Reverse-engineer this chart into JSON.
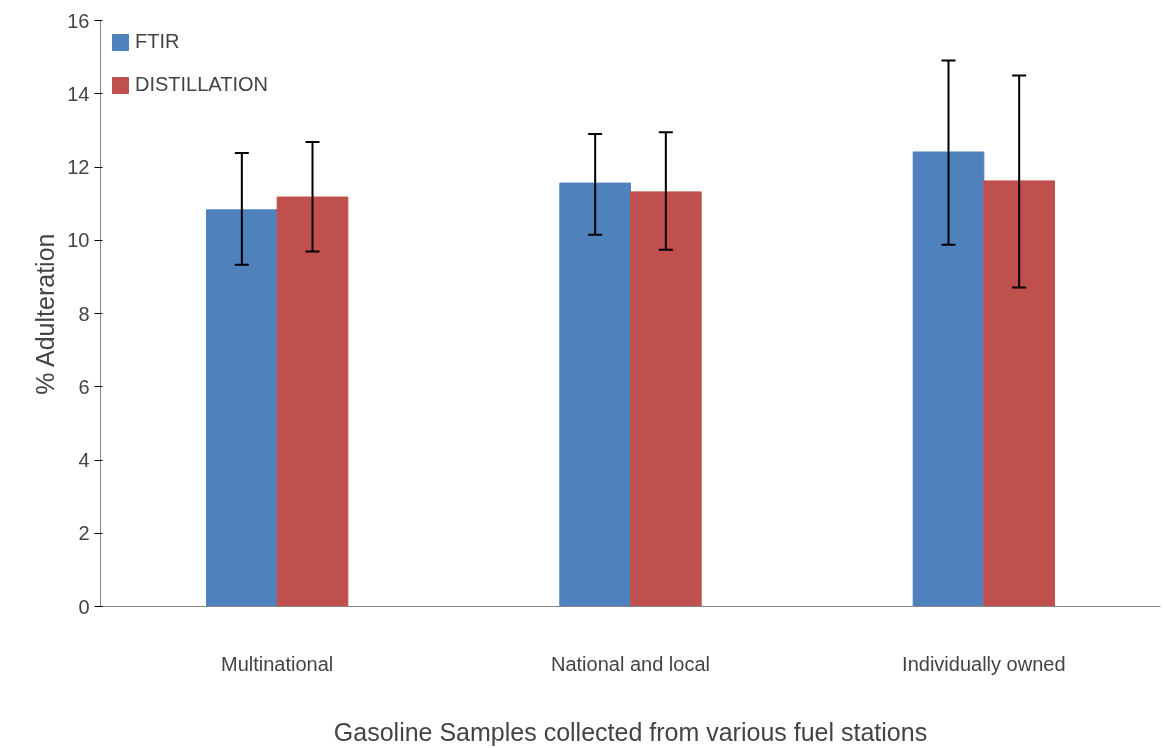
{
  "chart_data": {
    "type": "bar",
    "xlabel": "Gasoline Samples collected from various fuel stations",
    "ylabel": "% Adulteration",
    "categories": [
      "Multinational",
      "National and local",
      "Individually owned"
    ],
    "series": [
      {
        "name": "FTIR",
        "color": "#4f81bd",
        "values": [
          10.83,
          11.56,
          12.41
        ],
        "errors": [
          [
            9.33,
            12.38
          ],
          [
            10.15,
            12.9
          ],
          [
            9.88,
            14.91
          ]
        ]
      },
      {
        "name": "DISTILLATION",
        "color": "#c0504d",
        "values": [
          11.18,
          11.32,
          11.62
        ],
        "errors": [
          [
            9.69,
            12.68
          ],
          [
            9.74,
            12.95
          ],
          [
            8.71,
            14.5
          ]
        ]
      }
    ],
    "ylim": [
      0,
      16
    ],
    "yticks": [
      0,
      2,
      4,
      6,
      8,
      10,
      12,
      14,
      16
    ],
    "grid": false,
    "legend": "top left"
  }
}
